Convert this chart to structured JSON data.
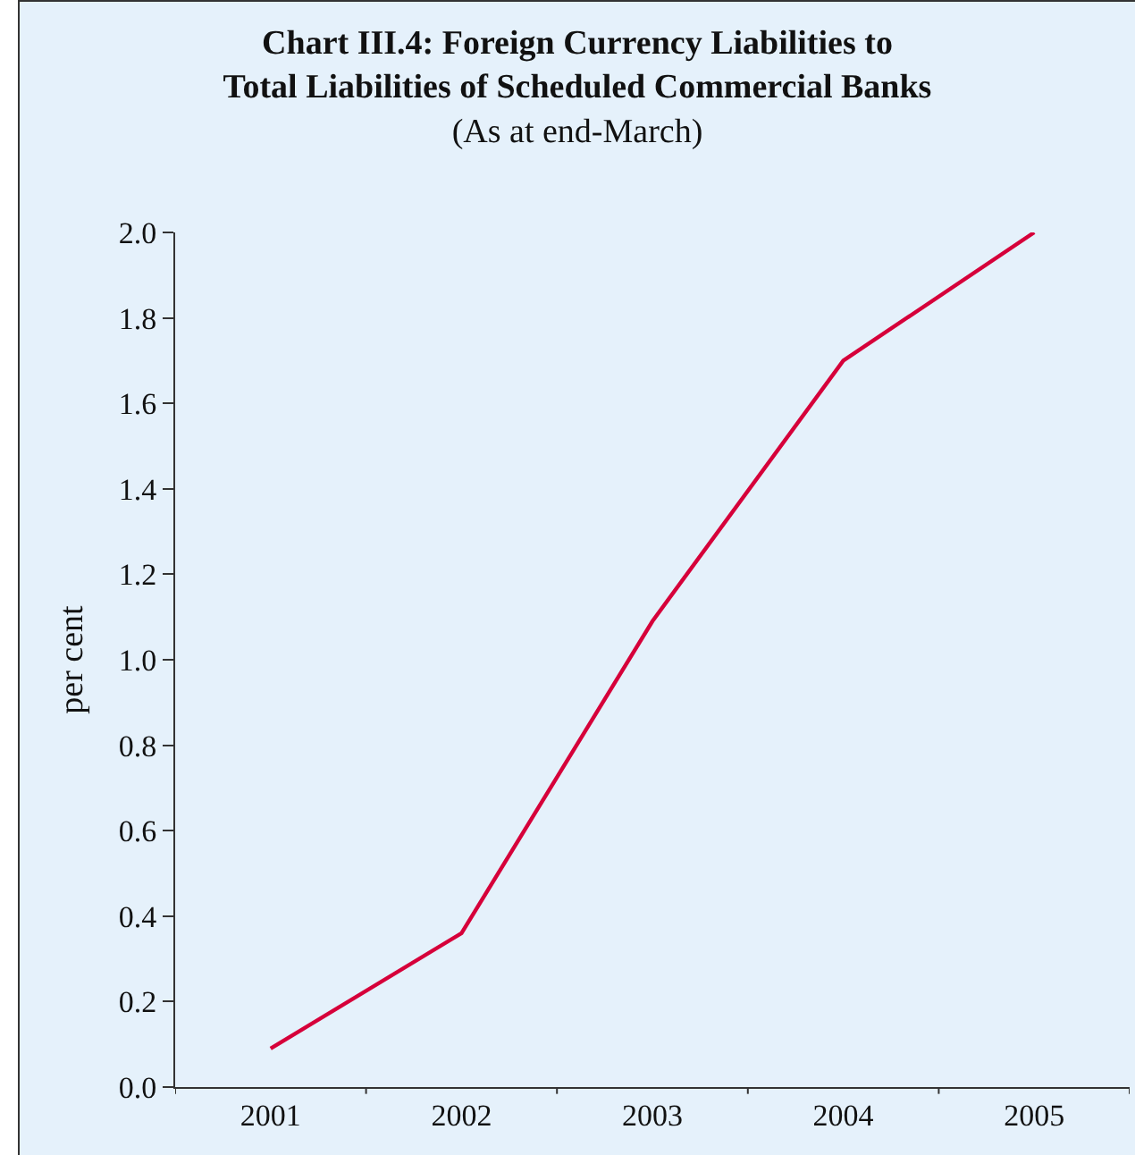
{
  "chart_data": {
    "type": "line",
    "title": "Chart III.4: Foreign Currency Liabilities to Total Liabilities of Scheduled Commercial Banks",
    "subtitle": "(As at end-March)",
    "ylabel": "per cent",
    "categories": [
      "2001",
      "2002",
      "2003",
      "2004",
      "2005"
    ],
    "series": [
      {
        "color": "#d6003a",
        "values": [
          0.09,
          0.36,
          1.09,
          1.7,
          2.0
        ]
      }
    ],
    "ylim": [
      0,
      2.0
    ],
    "yticks": [
      {
        "value": 0,
        "label": "0.0"
      },
      {
        "value": 0.2,
        "label": "0.2"
      },
      {
        "value": 0.4,
        "label": "0.4"
      },
      {
        "value": 0.6,
        "label": "0.6"
      },
      {
        "value": 0.8,
        "label": "0.8"
      },
      {
        "value": 1.0,
        "label": "1.0"
      },
      {
        "value": 1.2,
        "label": "1.2"
      },
      {
        "value": 1.4,
        "label": "1.4"
      },
      {
        "value": 1.6,
        "label": "1.6"
      },
      {
        "value": 1.8,
        "label": "1.8"
      },
      {
        "value": 2.0,
        "label": "2.0"
      }
    ],
    "grid": false,
    "marker": "none",
    "line_style": "solid"
  }
}
